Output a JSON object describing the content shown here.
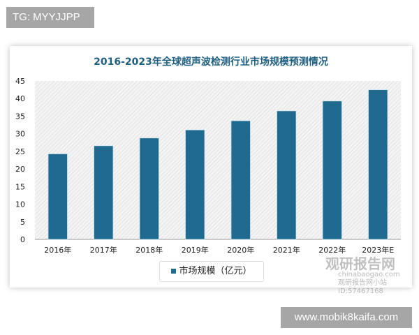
{
  "tag_top": "TG: MYYJJPP",
  "tag_bottom": "www.mobik8kaifa.com",
  "watermark": {
    "brand": "观研报告网",
    "site": "chinabaogao.com",
    "sub": "观研报告网小站",
    "id": "ID:57467168"
  },
  "chart_data": {
    "type": "bar",
    "title": "2016-2023年全球超声波检测行业市场规模预测情况",
    "categories": [
      "2016年",
      "2017年",
      "2018年",
      "2019年",
      "2020年",
      "2021年",
      "2022年",
      "2023年E"
    ],
    "series": [
      {
        "name": "市场规模（亿元）",
        "values": [
          24.3,
          26.6,
          28.8,
          31.1,
          33.7,
          36.5,
          39.3,
          42.5
        ]
      }
    ],
    "yticks": [
      "0",
      "5",
      "10",
      "15",
      "20",
      "25",
      "30",
      "35",
      "40",
      "45"
    ],
    "ylim": [
      0,
      45
    ],
    "grid": false,
    "legend": "bottom",
    "bar_color": "#1f6a8e",
    "title_color": "#1f5f80"
  }
}
